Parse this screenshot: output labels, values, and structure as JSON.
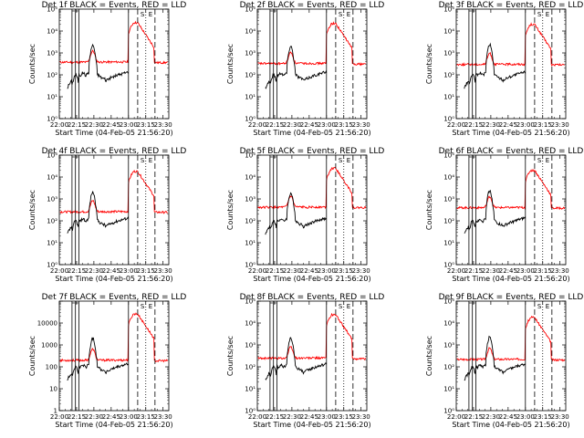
{
  "chart_data": {
    "type": "line",
    "colors": {
      "events": "#000000",
      "lld": "#ff0000"
    },
    "xlabel": "Start Time (04-Feb-05 21:56:20)",
    "ylabel": "Counts/sec",
    "x_tick_labels": [
      "22:00",
      "22:15",
      "22:30",
      "22:45",
      "23:00",
      "23:15",
      "23:30"
    ],
    "xlim_minutes_since_22_00": [
      0,
      95
    ],
    "x_ticks_minutes_since_22_00": [
      0,
      15,
      30,
      45,
      60,
      75,
      90
    ],
    "y_scale": "log",
    "ylim": [
      1,
      100000
    ],
    "y_ticks": [
      1,
      10,
      100,
      1000,
      10000,
      100000
    ],
    "exponent_tick_labels": [
      "10⁰",
      "10¹",
      "10²",
      "10³",
      "10⁴",
      "10⁵"
    ],
    "plain_tick_labels": [
      "1",
      "10",
      "100",
      "1000",
      "10000"
    ],
    "markers": {
      "solid_minutes": [
        11,
        14,
        17,
        60
      ],
      "dashed_minutes": [
        68,
        83
      ],
      "dotted_minutes": [
        75
      ],
      "letters": [
        "S",
        "E"
      ]
    },
    "panels": [
      {
        "title": "Det 1f BLACK = Events, RED = LLD",
        "events_scale": 0.55,
        "lld_base": 380,
        "lld_peak": 24000,
        "label_style": "exp"
      },
      {
        "title": "Det 2f BLACK = Events, RED = LLD",
        "events_scale": 0.5,
        "lld_base": 330,
        "lld_peak": 22000,
        "label_style": "exp"
      },
      {
        "title": "Det 3f BLACK = Events, RED = LLD",
        "events_scale": 0.6,
        "lld_base": 300,
        "lld_peak": 20000,
        "label_style": "exp"
      },
      {
        "title": "Det 4f BLACK = Events, RED = LLD",
        "events_scale": 0.5,
        "lld_base": 260,
        "lld_peak": 18000,
        "label_style": "exp"
      },
      {
        "title": "Det 5f BLACK = Events, RED = LLD",
        "events_scale": 0.45,
        "lld_base": 420,
        "lld_peak": 25000,
        "label_style": "exp"
      },
      {
        "title": "Det 6f BLACK = Events, RED = LLD",
        "events_scale": 0.6,
        "lld_base": 400,
        "lld_peak": 20000,
        "label_style": "exp"
      },
      {
        "title": "Det 7f BLACK = Events, RED = LLD",
        "events_scale": 0.5,
        "lld_base": 200,
        "lld_peak": 26000,
        "label_style": "plain"
      },
      {
        "title": "Det 8f BLACK = Events, RED = LLD",
        "events_scale": 0.5,
        "lld_base": 250,
        "lld_peak": 24000,
        "label_style": "exp"
      },
      {
        "title": "Det 9f BLACK = Events, RED = LLD",
        "events_scale": 0.6,
        "lld_base": 220,
        "lld_peak": 18000,
        "label_style": "exp"
      }
    ]
  }
}
